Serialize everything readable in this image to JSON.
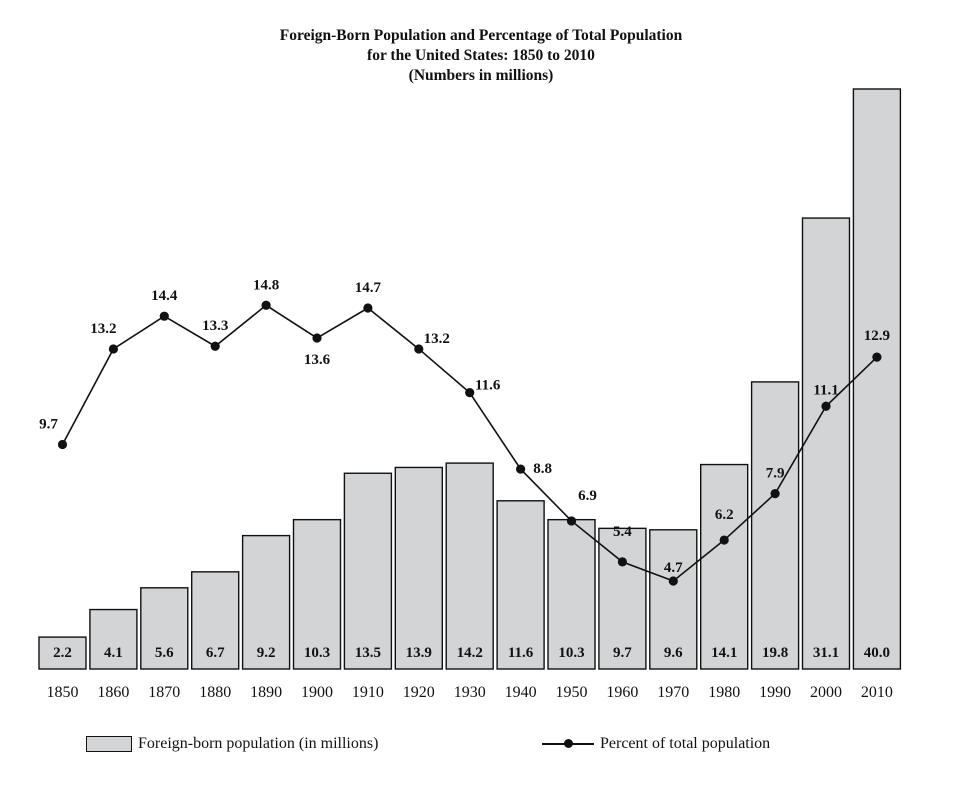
{
  "chart_data": {
    "type": "bar",
    "title": [
      "Foreign-Born Population and Percentage of Total Population",
      "for the United States: 1850 to 2010",
      "(Numbers in millions)"
    ],
    "categories": [
      "1850",
      "1860",
      "1870",
      "1880",
      "1890",
      "1900",
      "1910",
      "1920",
      "1930",
      "1940",
      "1950",
      "1960",
      "1970",
      "1980",
      "1990",
      "2000",
      "2010"
    ],
    "series": [
      {
        "name": "Foreign-born population (in millions)",
        "type": "bar",
        "color": "#d3d4d6",
        "values": [
          2.2,
          4.1,
          5.6,
          6.7,
          9.2,
          10.3,
          13.5,
          13.9,
          14.2,
          11.6,
          10.3,
          9.7,
          9.6,
          14.1,
          19.8,
          31.1,
          40.0
        ],
        "labels": [
          "2.2",
          "4.1",
          "5.6",
          "6.7",
          "9.2",
          "10.3",
          "13.5",
          "13.9",
          "14.2",
          "11.6",
          "10.3",
          "9.7",
          "9.6",
          "14.1",
          "19.8",
          "31.1",
          "40.0"
        ]
      },
      {
        "name": "Percent of total population",
        "type": "line",
        "color": "#111111",
        "values": [
          9.7,
          13.2,
          14.4,
          13.3,
          14.8,
          13.6,
          14.7,
          13.2,
          11.6,
          8.8,
          6.9,
          5.4,
          4.7,
          6.2,
          7.9,
          11.1,
          12.9
        ],
        "labels": [
          "9.7",
          "13.2",
          "14.4",
          "13.3",
          "14.8",
          "13.6",
          "14.7",
          "13.2",
          "11.6",
          "8.8",
          "6.9",
          "5.4",
          "4.7",
          "6.2",
          "7.9",
          "11.1",
          "12.9"
        ]
      }
    ],
    "grid": false,
    "legend": "bottom"
  }
}
